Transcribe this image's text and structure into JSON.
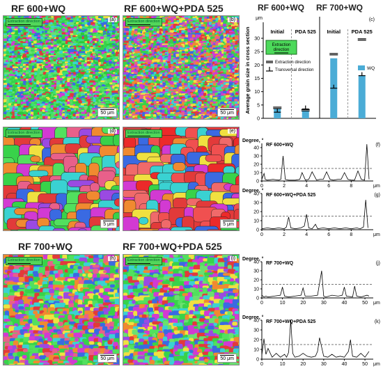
{
  "titles": {
    "top_left": "RF 600+WQ",
    "top_mid": "RF 600+WQ+PDA 525",
    "bot_left": "RF 700+WQ",
    "bot_mid": "RF 700+WQ+PDA 525",
    "c_left": "RF 600+WQ",
    "c_right": "RF 700+WQ"
  },
  "maps": [
    {
      "id": "a",
      "label": "(a)",
      "extraction": "Extraction direction",
      "scale": "50 μm"
    },
    {
      "id": "b",
      "label": "(b)",
      "extraction": "Extraction direction",
      "scale": "50 μm"
    },
    {
      "id": "d",
      "label": "(d)",
      "extraction": "Extraction direction",
      "scale": "5 μm"
    },
    {
      "id": "e",
      "label": "(e)",
      "extraction": "Extraction direction",
      "scale": "5 μm"
    },
    {
      "id": "h",
      "label": "(h)",
      "extraction": "Extraction direction",
      "scale": "50 μm"
    },
    {
      "id": "i",
      "label": "(i)",
      "extraction": "Extraction direction",
      "scale": "50 μm"
    }
  ],
  "chart_data": [
    {
      "type": "bar",
      "panel": "(c)",
      "ylabel": "Average grain size in cross section",
      "yunit": "μm",
      "ylim": [
        0,
        36
      ],
      "categories": [
        "Initial",
        "PDA 525",
        "Initial",
        "PDA 525"
      ],
      "series": [
        {
          "name": "WQ",
          "color": "#4bacd6",
          "values": [
            3.5,
            3.0,
            22.5,
            16.0
          ]
        }
      ],
      "markers": {
        "extraction": [
          4.2,
          3.3,
          24.3,
          29.8
        ],
        "transversal": [
          2.3,
          3.5,
          11.3,
          16.0
        ]
      },
      "group_labels": [
        "RF 600+WQ",
        "RF 700+WQ"
      ],
      "ticks": [
        0,
        5,
        10,
        15,
        20,
        25,
        30
      ],
      "legend": {
        "extraction_box": "Extraction direction",
        "extraction": "Extraction direction",
        "transversal": "Transversal direction",
        "wq": "WQ"
      }
    },
    {
      "type": "line",
      "panel": "(f)",
      "title": "RF 600+WQ",
      "ylabel": "Degree, °",
      "xunit": "μm",
      "xlim": [
        0,
        9.6
      ],
      "ylim": [
        0,
        45
      ],
      "yticks": [
        0,
        10,
        20,
        30,
        40
      ],
      "xticks": [
        0,
        2,
        4,
        6,
        8
      ],
      "threshold": 15,
      "x": [
        0,
        0.2,
        0.3,
        0.5,
        1.0,
        1.5,
        1.7,
        1.9,
        2.1,
        2.4,
        3.0,
        3.4,
        3.6,
        3.9,
        4.2,
        4.5,
        4.9,
        5.2,
        5.5,
        5.8,
        6.1,
        6.4,
        6.8,
        7.1,
        7.4,
        7.7,
        8.0,
        8.3,
        8.6,
        8.9,
        9.2,
        9.4,
        9.6
      ],
      "y": [
        2,
        9,
        2,
        1,
        2,
        1,
        2,
        30,
        2,
        1,
        1,
        2,
        10,
        1,
        2,
        11,
        1,
        2,
        2,
        11,
        2,
        1,
        2,
        2,
        10,
        2,
        1,
        1,
        12,
        2,
        1,
        44,
        2
      ]
    },
    {
      "type": "line",
      "panel": "(g)",
      "title": "RF 600+WQ+PDA 525",
      "ylabel": "Degree, °",
      "xunit": "μm",
      "xlim": [
        0,
        9.6
      ],
      "ylim": [
        0,
        40
      ],
      "yticks": [
        0,
        10,
        20,
        30,
        40
      ],
      "xticks": [
        0,
        2,
        4,
        6,
        8
      ],
      "threshold": 15,
      "x": [
        0,
        0.5,
        1.0,
        1.5,
        2.0,
        2.2,
        2.4,
        2.6,
        3.0,
        3.5,
        3.8,
        4.0,
        4.2,
        4.5,
        4.8,
        5.0,
        5.5,
        6.0,
        6.5,
        7.0,
        7.5,
        8.0,
        8.5,
        8.8,
        9.1,
        9.3,
        9.5
      ],
      "y": [
        1,
        2,
        1,
        2,
        1,
        3,
        14,
        2,
        1,
        2,
        4,
        17,
        2,
        1,
        6,
        1,
        2,
        1,
        2,
        1,
        2,
        1,
        2,
        1,
        3,
        33,
        2
      ]
    },
    {
      "type": "line",
      "panel": "(j)",
      "title": "RF 700+WQ",
      "ylabel": "Degree, °",
      "xunit": "μm",
      "xlim": [
        0,
        52
      ],
      "ylim": [
        0,
        40
      ],
      "yticks": [
        0,
        10,
        20,
        30,
        40
      ],
      "xticks": [
        0,
        10,
        20,
        30,
        40,
        50
      ],
      "threshold": 15,
      "x": [
        0,
        1,
        2,
        3,
        6,
        9,
        10,
        11,
        13,
        16,
        19,
        20,
        21,
        24,
        27,
        29,
        30,
        31,
        34,
        37,
        39,
        40,
        41,
        44,
        45,
        46,
        48,
        51,
        52
      ],
      "y": [
        3,
        1,
        2,
        1,
        2,
        3,
        12,
        2,
        1,
        2,
        3,
        11,
        2,
        2,
        3,
        30,
        2,
        1,
        3,
        2,
        3,
        12,
        2,
        1,
        13,
        2,
        1,
        3,
        2
      ]
    },
    {
      "type": "line",
      "panel": "(k)",
      "title": "RF 700+WQ+PDA 525",
      "ylabel": "Degree, °",
      "xunit": "μm",
      "xlim": [
        0,
        52
      ],
      "ylim": [
        0,
        40
      ],
      "yticks": [
        0,
        10,
        20,
        30,
        40
      ],
      "xticks": [
        0,
        10,
        20,
        30,
        40,
        50
      ],
      "threshold": 15,
      "x": [
        0,
        1,
        2,
        3,
        5,
        7,
        9,
        11,
        12,
        13,
        14,
        15,
        16,
        18,
        20,
        22,
        24,
        26,
        27,
        28,
        30,
        32,
        34,
        36,
        38,
        40,
        42,
        43,
        44,
        46,
        48,
        50,
        52
      ],
      "y": [
        4,
        21,
        5,
        11,
        2,
        6,
        2,
        5,
        2,
        7,
        40,
        6,
        2,
        3,
        6,
        3,
        2,
        3,
        8,
        22,
        3,
        2,
        5,
        2,
        3,
        2,
        8,
        20,
        3,
        2,
        6,
        2,
        8
      ]
    }
  ],
  "colors": {
    "bar": "#4bacd6",
    "axis": "#000",
    "grid": "#777"
  }
}
